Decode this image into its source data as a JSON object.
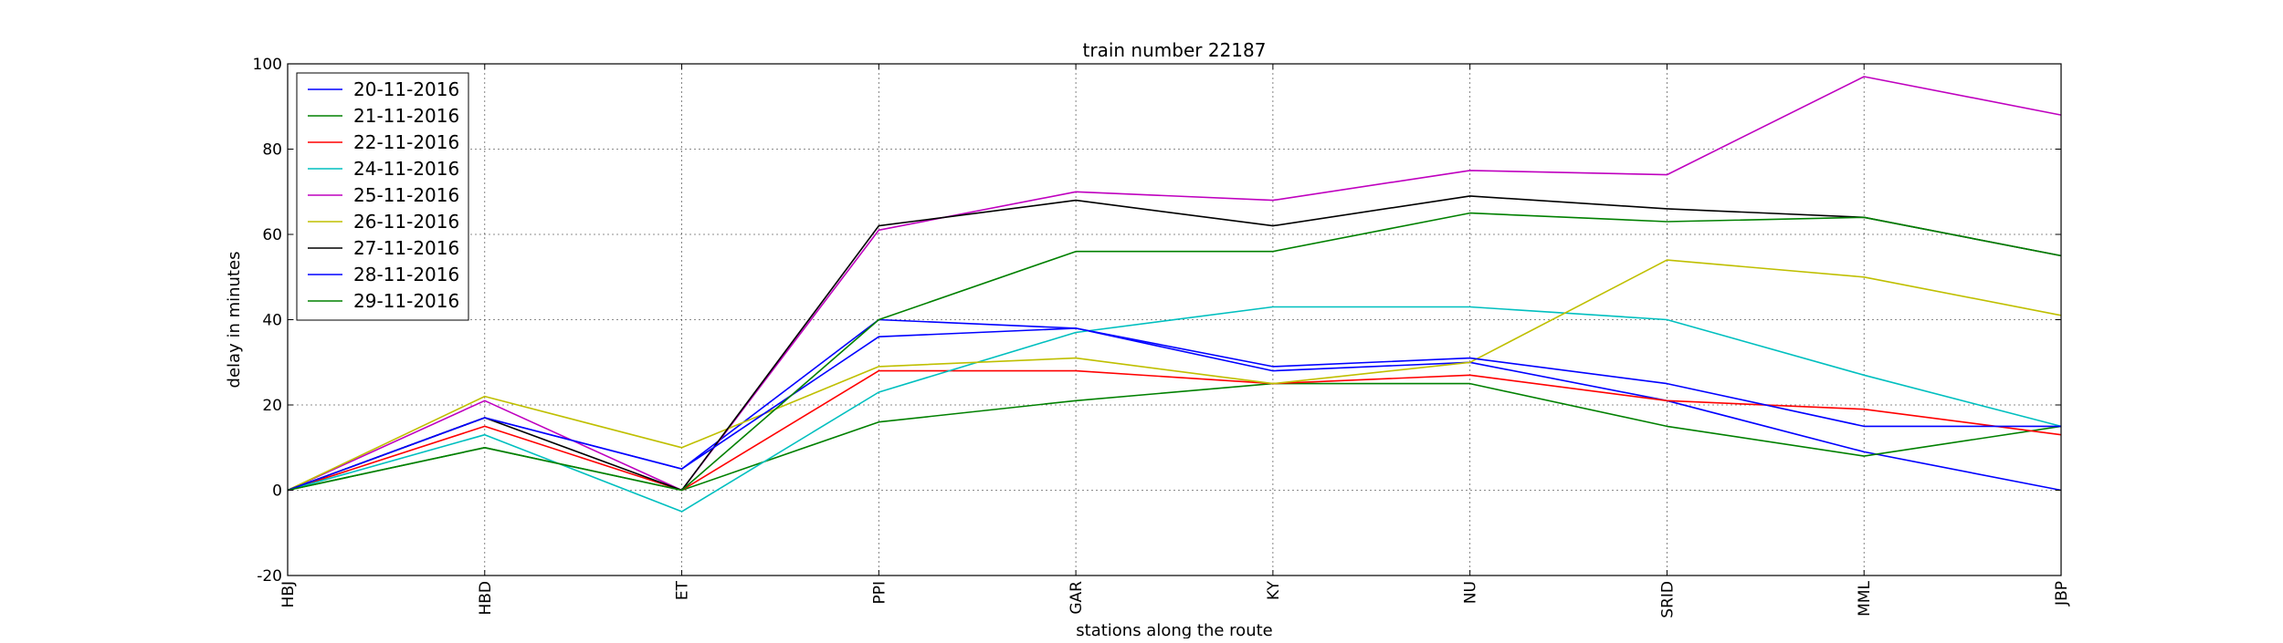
{
  "chart_data": {
    "type": "line",
    "title": "train number 22187",
    "xlabel": "stations along the route",
    "ylabel": "delay in minutes",
    "categories": [
      "HBJ",
      "HBD",
      "ET",
      "PPI",
      "GAR",
      "KY",
      "NU",
      "SRID",
      "MML",
      "JBP"
    ],
    "ylim": [
      -20,
      100
    ],
    "yticks": [
      -20,
      0,
      20,
      40,
      60,
      80,
      100
    ],
    "grid": true,
    "legend_position": "top-left",
    "series": [
      {
        "name": "20-11-2016",
        "color": "#0000ff",
        "values": [
          0,
          17,
          5,
          40,
          38,
          28,
          30,
          21,
          9,
          0
        ]
      },
      {
        "name": "21-11-2016",
        "color": "#008000",
        "values": [
          0,
          10,
          0,
          16,
          21,
          25,
          25,
          15,
          8,
          15
        ]
      },
      {
        "name": "22-11-2016",
        "color": "#ff0000",
        "values": [
          0,
          15,
          0,
          28,
          28,
          25,
          27,
          21,
          19,
          13
        ]
      },
      {
        "name": "24-11-2016",
        "color": "#00bfbf",
        "values": [
          0,
          13,
          -5,
          23,
          37,
          43,
          43,
          40,
          27,
          15
        ]
      },
      {
        "name": "25-11-2016",
        "color": "#bf00bf",
        "values": [
          0,
          21,
          0,
          61,
          70,
          68,
          75,
          74,
          97,
          88
        ]
      },
      {
        "name": "26-11-2016",
        "color": "#bfbf00",
        "values": [
          0,
          22,
          10,
          29,
          31,
          25,
          30,
          54,
          50,
          41
        ]
      },
      {
        "name": "27-11-2016",
        "color": "#000000",
        "values": [
          0,
          17,
          0,
          62,
          68,
          62,
          69,
          66,
          64,
          55
        ]
      },
      {
        "name": "28-11-2016",
        "color": "#0000ff",
        "values": [
          0,
          17,
          5,
          36,
          38,
          29,
          31,
          25,
          15,
          15
        ]
      },
      {
        "name": "29-11-2016",
        "color": "#008000",
        "values": [
          0,
          10,
          0,
          40,
          56,
          56,
          65,
          63,
          64,
          55
        ]
      }
    ]
  }
}
